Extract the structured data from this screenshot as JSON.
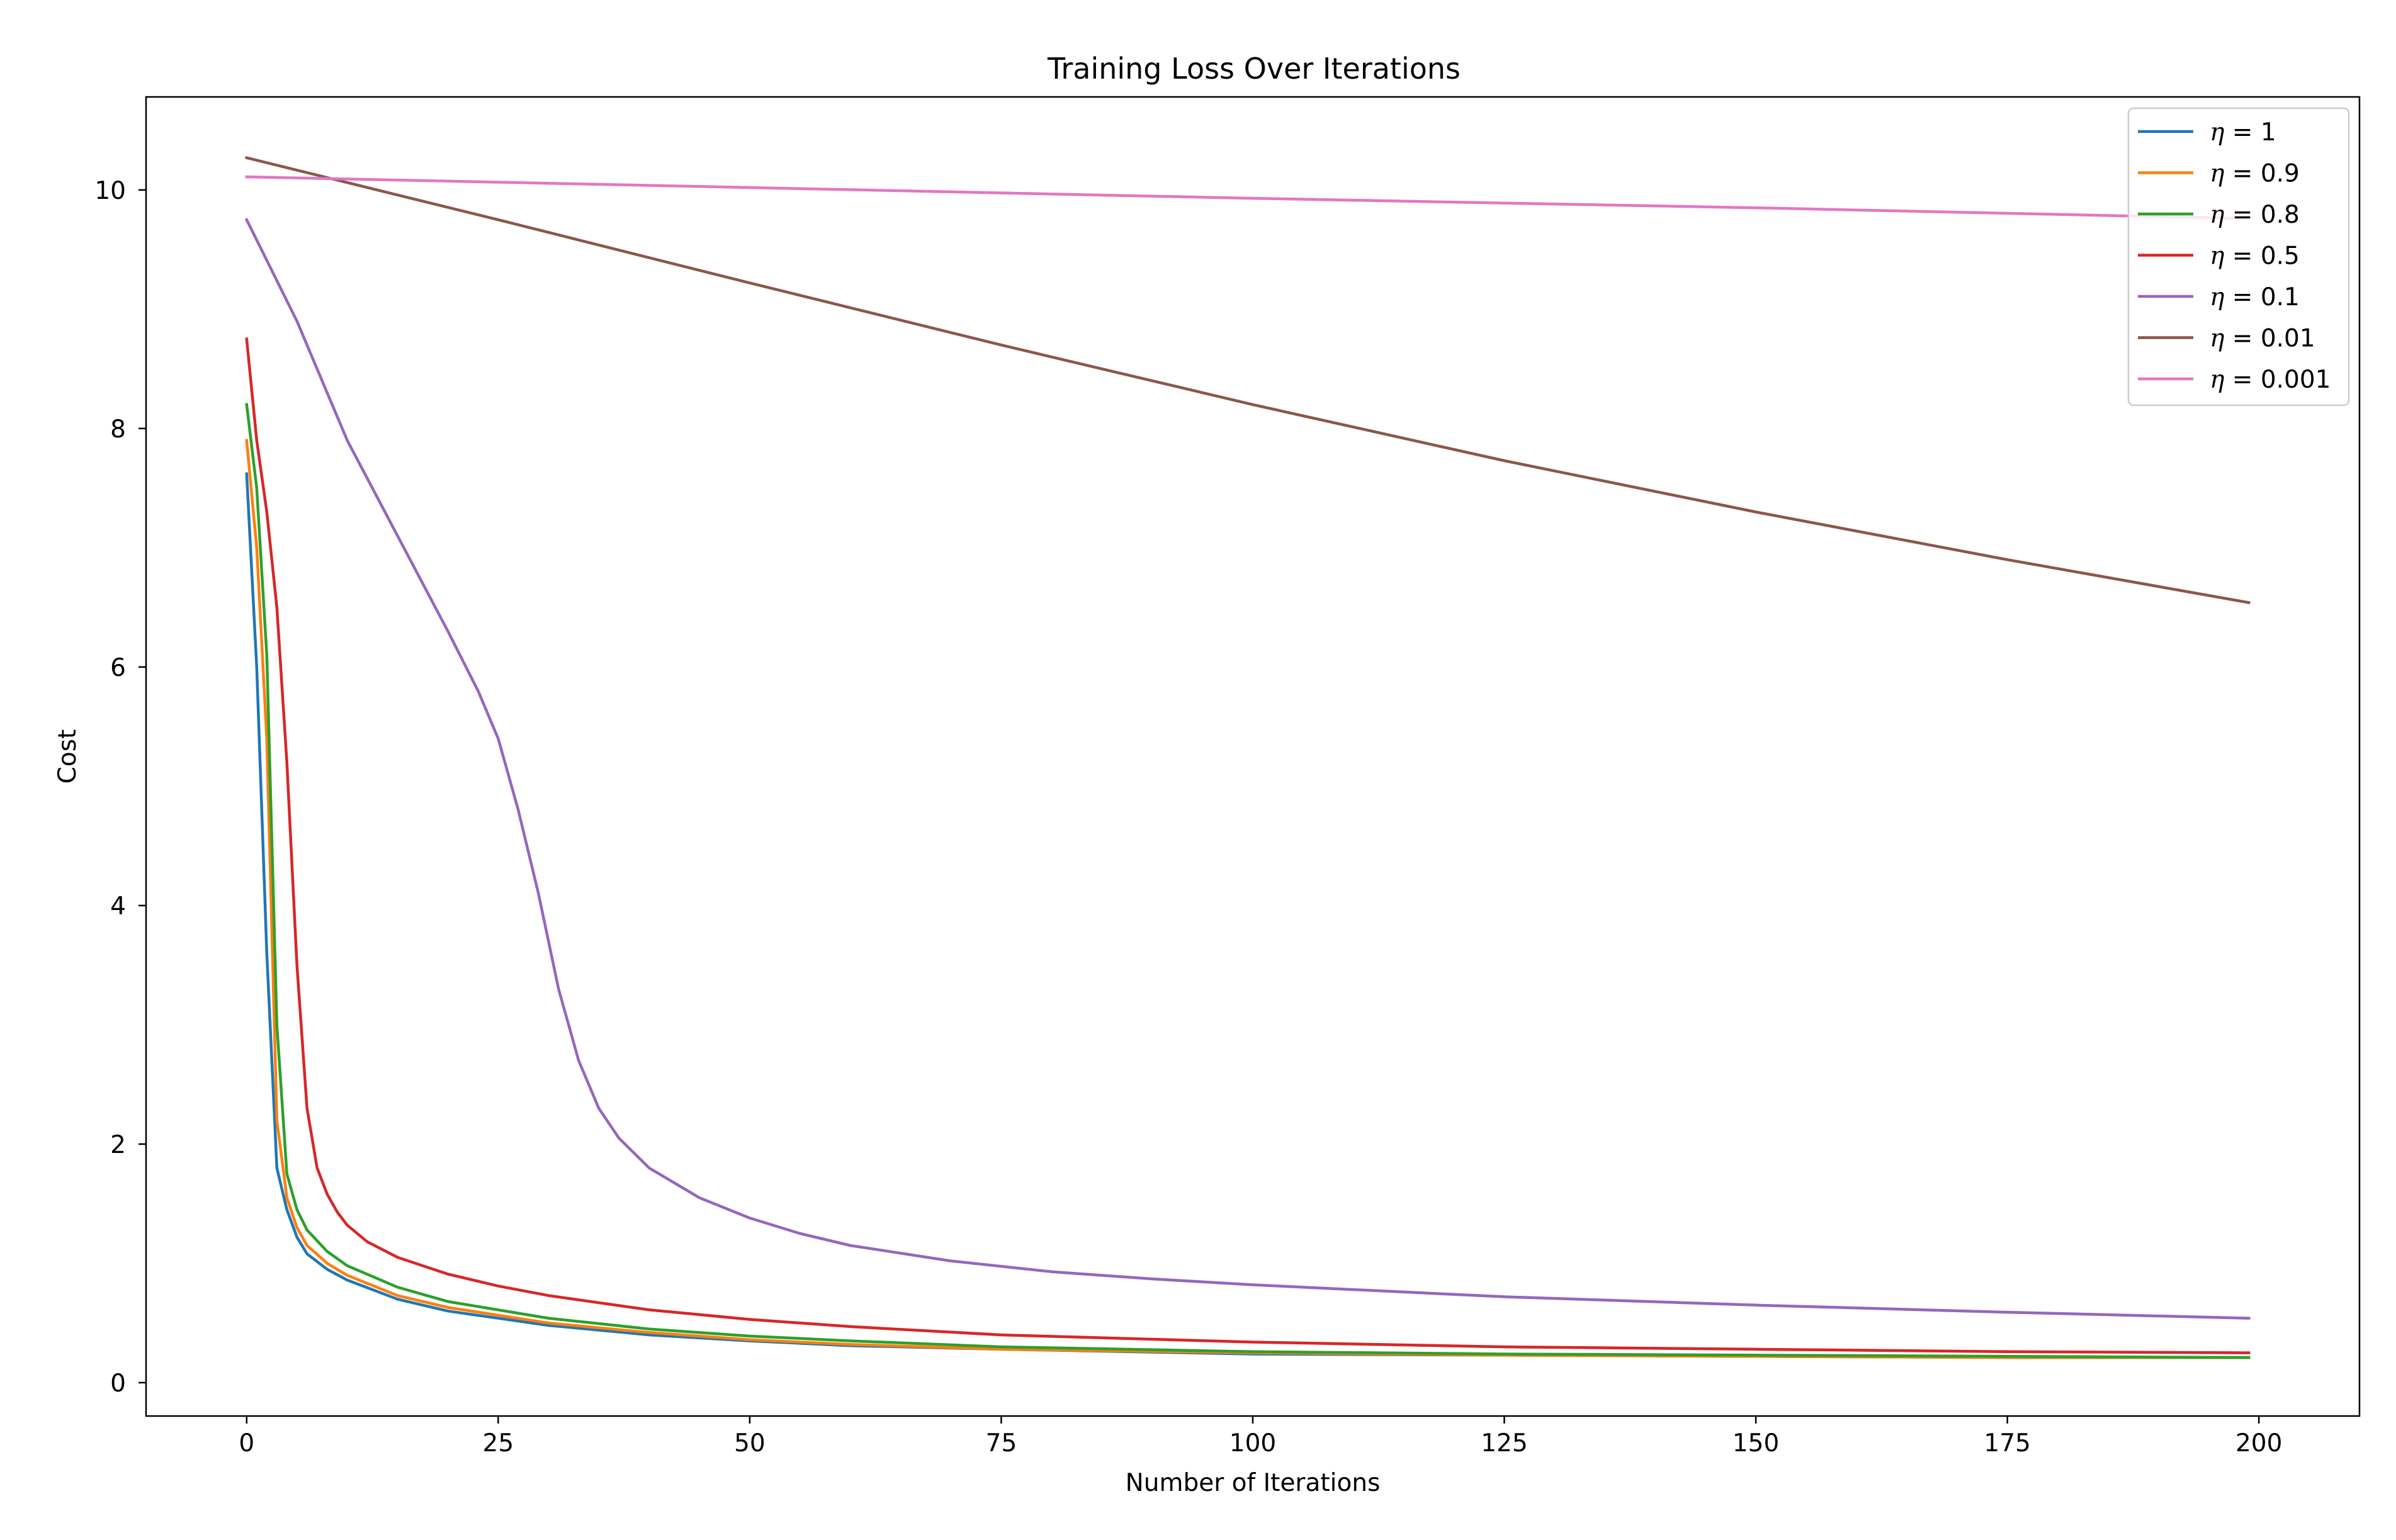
{
  "chart_data": {
    "type": "line",
    "title": "Training Loss Over Iterations",
    "xlabel": "Number of Iterations",
    "ylabel": "Cost",
    "xlim": [
      -10,
      210
    ],
    "ylim": [
      -0.28,
      10.78
    ],
    "xticks": [
      0,
      25,
      50,
      75,
      100,
      125,
      150,
      175,
      200
    ],
    "xtick_labels": [
      "0",
      "25",
      "50",
      "75",
      "100",
      "125",
      "150",
      "175",
      "200"
    ],
    "yticks": [
      0,
      2,
      4,
      6,
      8,
      10
    ],
    "ytick_labels": [
      "0",
      "2",
      "4",
      "6",
      "8",
      "10"
    ],
    "grid": false,
    "legend_position": "top-right",
    "series": [
      {
        "name": "η = 1",
        "greek": "η",
        "value": "1",
        "color": "#1f77b4",
        "points": [
          [
            0,
            7.62
          ],
          [
            1,
            6.0
          ],
          [
            2,
            3.6
          ],
          [
            3,
            1.8
          ],
          [
            4,
            1.45
          ],
          [
            5,
            1.22
          ],
          [
            6,
            1.08
          ],
          [
            8,
            0.95
          ],
          [
            10,
            0.86
          ],
          [
            15,
            0.7
          ],
          [
            20,
            0.6
          ],
          [
            30,
            0.48
          ],
          [
            40,
            0.4
          ],
          [
            50,
            0.35
          ],
          [
            60,
            0.31
          ],
          [
            75,
            0.28
          ],
          [
            100,
            0.24
          ],
          [
            125,
            0.23
          ],
          [
            150,
            0.22
          ],
          [
            175,
            0.21
          ],
          [
            199,
            0.21
          ]
        ]
      },
      {
        "name": "η = 0.9",
        "greek": "η",
        "value": "0.9",
        "color": "#ff7f0e",
        "points": [
          [
            0,
            7.9
          ],
          [
            1,
            7.0
          ],
          [
            2,
            5.4
          ],
          [
            3,
            2.2
          ],
          [
            4,
            1.55
          ],
          [
            5,
            1.3
          ],
          [
            6,
            1.15
          ],
          [
            8,
            1.0
          ],
          [
            10,
            0.9
          ],
          [
            15,
            0.73
          ],
          [
            20,
            0.63
          ],
          [
            30,
            0.5
          ],
          [
            40,
            0.42
          ],
          [
            50,
            0.36
          ],
          [
            60,
            0.32
          ],
          [
            75,
            0.28
          ],
          [
            100,
            0.25
          ],
          [
            125,
            0.23
          ],
          [
            150,
            0.22
          ],
          [
            175,
            0.21
          ],
          [
            199,
            0.21
          ]
        ]
      },
      {
        "name": "η = 0.8",
        "greek": "η",
        "value": "0.8",
        "color": "#2ca02c",
        "points": [
          [
            0,
            8.2
          ],
          [
            1,
            7.5
          ],
          [
            2,
            6.1
          ],
          [
            3,
            3.0
          ],
          [
            4,
            1.75
          ],
          [
            5,
            1.45
          ],
          [
            6,
            1.28
          ],
          [
            8,
            1.1
          ],
          [
            10,
            0.98
          ],
          [
            15,
            0.8
          ],
          [
            20,
            0.68
          ],
          [
            30,
            0.54
          ],
          [
            40,
            0.45
          ],
          [
            50,
            0.39
          ],
          [
            60,
            0.35
          ],
          [
            75,
            0.3
          ],
          [
            100,
            0.26
          ],
          [
            125,
            0.24
          ],
          [
            150,
            0.23
          ],
          [
            175,
            0.22
          ],
          [
            199,
            0.21
          ]
        ]
      },
      {
        "name": "η = 0.5",
        "greek": "η",
        "value": "0.5",
        "color": "#d62728",
        "points": [
          [
            0,
            8.75
          ],
          [
            1,
            7.9
          ],
          [
            2,
            7.3
          ],
          [
            3,
            6.5
          ],
          [
            4,
            5.2
          ],
          [
            5,
            3.5
          ],
          [
            6,
            2.3
          ],
          [
            7,
            1.8
          ],
          [
            8,
            1.58
          ],
          [
            9,
            1.43
          ],
          [
            10,
            1.32
          ],
          [
            12,
            1.18
          ],
          [
            15,
            1.05
          ],
          [
            20,
            0.91
          ],
          [
            25,
            0.81
          ],
          [
            30,
            0.73
          ],
          [
            40,
            0.61
          ],
          [
            50,
            0.53
          ],
          [
            60,
            0.47
          ],
          [
            75,
            0.4
          ],
          [
            100,
            0.34
          ],
          [
            125,
            0.3
          ],
          [
            150,
            0.28
          ],
          [
            175,
            0.26
          ],
          [
            199,
            0.25
          ]
        ]
      },
      {
        "name": "η = 0.1",
        "greek": "η",
        "value": "0.1",
        "color": "#9467bd",
        "points": [
          [
            0,
            9.75
          ],
          [
            5,
            8.9
          ],
          [
            10,
            7.9
          ],
          [
            15,
            7.1
          ],
          [
            20,
            6.3
          ],
          [
            23,
            5.8
          ],
          [
            25,
            5.4
          ],
          [
            27,
            4.8
          ],
          [
            29,
            4.1
          ],
          [
            31,
            3.3
          ],
          [
            33,
            2.7
          ],
          [
            35,
            2.3
          ],
          [
            37,
            2.05
          ],
          [
            40,
            1.8
          ],
          [
            45,
            1.55
          ],
          [
            50,
            1.38
          ],
          [
            55,
            1.25
          ],
          [
            60,
            1.15
          ],
          [
            70,
            1.02
          ],
          [
            80,
            0.93
          ],
          [
            90,
            0.87
          ],
          [
            100,
            0.82
          ],
          [
            125,
            0.72
          ],
          [
            150,
            0.65
          ],
          [
            175,
            0.59
          ],
          [
            199,
            0.54
          ]
        ]
      },
      {
        "name": "η = 0.01",
        "greek": "η",
        "value": "0.01",
        "color": "#8c564b",
        "points": [
          [
            0,
            10.27
          ],
          [
            25,
            9.75
          ],
          [
            50,
            9.22
          ],
          [
            75,
            8.7
          ],
          [
            100,
            8.2
          ],
          [
            125,
            7.73
          ],
          [
            150,
            7.3
          ],
          [
            175,
            6.9
          ],
          [
            199,
            6.54
          ]
        ]
      },
      {
        "name": "η = 0.001",
        "greek": "η",
        "value": "0.001",
        "color": "#e377c2",
        "points": [
          [
            0,
            10.11
          ],
          [
            50,
            10.02
          ],
          [
            100,
            9.93
          ],
          [
            150,
            9.85
          ],
          [
            199,
            9.76
          ]
        ]
      }
    ]
  }
}
